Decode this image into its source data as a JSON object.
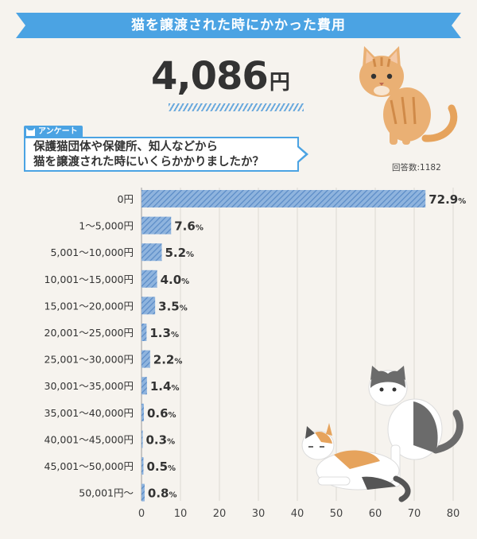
{
  "banner": {
    "title": "猫を譲渡された時にかかった費用"
  },
  "headline": {
    "value": "4,086",
    "unit": "円"
  },
  "survey": {
    "tag": "アンケート",
    "question_line1": "保護猫団体や保健所、知人などから",
    "question_line2": "猫を譲渡された時にいくらかかりましたか？",
    "respondents": "回答数:1182"
  },
  "colors": {
    "accent": "#4ba3e3",
    "bar": "#6b9bd1",
    "background": "#f6f3ee",
    "grid": "#dcd8d2"
  },
  "icons": {
    "banner": "ribbon-banner",
    "tag": "cat-head-icon",
    "illustrations": [
      "orange-tabby-cat",
      "gray-white-cat",
      "calico-cat"
    ]
  },
  "chart_data": {
    "type": "bar",
    "orientation": "horizontal",
    "categories": [
      "0円",
      "1〜5,000円",
      "5,001〜10,000円",
      "10,001〜15,000円",
      "15,001〜20,000円",
      "20,001〜25,000円",
      "25,001〜30,000円",
      "30,001〜35,000円",
      "35,001〜40,000円",
      "40,001〜45,000円",
      "45,001〜50,000円",
      "50,001円〜"
    ],
    "values": [
      72.9,
      7.6,
      5.2,
      4.0,
      3.5,
      1.3,
      2.2,
      1.4,
      0.6,
      0.3,
      0.5,
      0.8
    ],
    "value_labels": [
      "72.9",
      "7.6",
      "5.2",
      "4.0",
      "3.5",
      "1.3",
      "2.2",
      "1.4",
      "0.6",
      "0.3",
      "0.5",
      "0.8"
    ],
    "value_suffix": "%",
    "xlim": [
      0,
      80
    ],
    "xticks": [
      0,
      10,
      20,
      30,
      40,
      50,
      60,
      70,
      80
    ],
    "grid": true,
    "title": "",
    "xlabel": "",
    "ylabel": ""
  }
}
